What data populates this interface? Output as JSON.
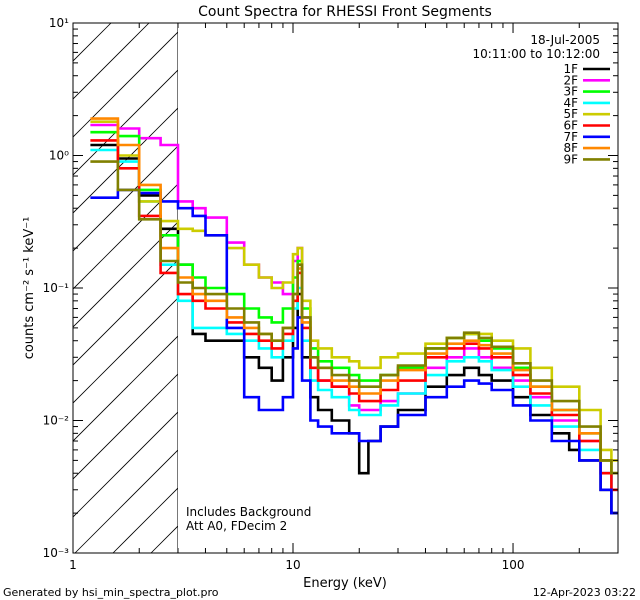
{
  "chart_data": {
    "type": "line",
    "title": "Count Spectra for RHESSI Front Segments",
    "xlabel": "Energy (keV)",
    "ylabel": "counts cm⁻² s⁻¹ keV⁻¹",
    "xscale": "log",
    "yscale": "log",
    "xlim": [
      1,
      300
    ],
    "ylim": [
      0.001,
      10
    ],
    "x_ticks": [
      {
        "value": 1,
        "label": "1"
      },
      {
        "value": 10,
        "label": "10"
      },
      {
        "value": 100,
        "label": "100"
      }
    ],
    "y_ticks": [
      {
        "value": 0.001,
        "label": "10⁻³"
      },
      {
        "value": 0.01,
        "label": "10⁻²"
      },
      {
        "value": 0.1,
        "label": "10⁻¹"
      },
      {
        "value": 1,
        "label": "10⁰"
      },
      {
        "value": 10,
        "label": "10¹"
      }
    ],
    "legend_position": "top-right",
    "header_lines": [
      "18-Jul-2005",
      "10:11:00 to 10:12:00"
    ],
    "hatched_region": {
      "x_from": 1,
      "x_to": 3
    },
    "annotations": [
      "Includes Background",
      "Att A0, FDecim 2"
    ],
    "series": [
      {
        "name": "1F",
        "color": "#000000",
        "points": [
          [
            1.2,
            1.2
          ],
          [
            1.6,
            0.95
          ],
          [
            2.0,
            0.5
          ],
          [
            2.5,
            0.28
          ],
          [
            3.0,
            0.15
          ],
          [
            3.5,
            0.045
          ],
          [
            4,
            0.04
          ],
          [
            5,
            0.04
          ],
          [
            6,
            0.03
          ],
          [
            7,
            0.025
          ],
          [
            8,
            0.02
          ],
          [
            9,
            0.03
          ],
          [
            10,
            0.05
          ],
          [
            10.5,
            0.09
          ],
          [
            11,
            0.03
          ],
          [
            12,
            0.015
          ],
          [
            13,
            0.012
          ],
          [
            15,
            0.01
          ],
          [
            18,
            0.008
          ],
          [
            20,
            0.004
          ],
          [
            22,
            0.007
          ],
          [
            25,
            0.009
          ],
          [
            30,
            0.012
          ],
          [
            40,
            0.018
          ],
          [
            50,
            0.022
          ],
          [
            60,
            0.025
          ],
          [
            70,
            0.022
          ],
          [
            80,
            0.02
          ],
          [
            100,
            0.015
          ],
          [
            120,
            0.011
          ],
          [
            150,
            0.008
          ],
          [
            180,
            0.006
          ],
          [
            200,
            0.005
          ],
          [
            250,
            0.003
          ],
          [
            280,
            0.002
          ]
        ]
      },
      {
        "name": "2F",
        "color": "#ff00ff",
        "points": [
          [
            1.2,
            1.7
          ],
          [
            1.6,
            1.6
          ],
          [
            2.0,
            1.35
          ],
          [
            2.5,
            1.2
          ],
          [
            3.0,
            0.45
          ],
          [
            3.5,
            0.4
          ],
          [
            4,
            0.34
          ],
          [
            5,
            0.22
          ],
          [
            6,
            0.15
          ],
          [
            7,
            0.12
          ],
          [
            8,
            0.11
          ],
          [
            9,
            0.09
          ],
          [
            10,
            0.16
          ],
          [
            10.5,
            0.2
          ],
          [
            11,
            0.06
          ],
          [
            12,
            0.025
          ],
          [
            13,
            0.02
          ],
          [
            15,
            0.018
          ],
          [
            18,
            0.013
          ],
          [
            20,
            0.012
          ],
          [
            25,
            0.014
          ],
          [
            30,
            0.016
          ],
          [
            40,
            0.025
          ],
          [
            50,
            0.03
          ],
          [
            60,
            0.035
          ],
          [
            70,
            0.03
          ],
          [
            80,
            0.025
          ],
          [
            100,
            0.02
          ],
          [
            120,
            0.015
          ],
          [
            150,
            0.01
          ],
          [
            200,
            0.007
          ],
          [
            250,
            0.004
          ],
          [
            280,
            0.003
          ]
        ]
      },
      {
        "name": "3F",
        "color": "#00ff00",
        "points": [
          [
            1.2,
            1.5
          ],
          [
            1.6,
            1.4
          ],
          [
            2.0,
            0.55
          ],
          [
            2.5,
            0.25
          ],
          [
            3.0,
            0.15
          ],
          [
            3.5,
            0.12
          ],
          [
            4,
            0.1
          ],
          [
            5,
            0.09
          ],
          [
            6,
            0.07
          ],
          [
            7,
            0.06
          ],
          [
            8,
            0.055
          ],
          [
            9,
            0.07
          ],
          [
            10,
            0.12
          ],
          [
            10.5,
            0.16
          ],
          [
            11,
            0.07
          ],
          [
            12,
            0.035
          ],
          [
            13,
            0.028
          ],
          [
            15,
            0.025
          ],
          [
            18,
            0.022
          ],
          [
            20,
            0.02
          ],
          [
            25,
            0.022
          ],
          [
            30,
            0.025
          ],
          [
            40,
            0.035
          ],
          [
            50,
            0.042
          ],
          [
            60,
            0.045
          ],
          [
            70,
            0.04
          ],
          [
            80,
            0.035
          ],
          [
            100,
            0.025
          ],
          [
            120,
            0.018
          ],
          [
            150,
            0.012
          ],
          [
            200,
            0.008
          ],
          [
            250,
            0.005
          ],
          [
            280,
            0.004
          ]
        ]
      },
      {
        "name": "4F",
        "color": "#00ffff",
        "points": [
          [
            1.2,
            1.1
          ],
          [
            1.6,
            0.9
          ],
          [
            2.0,
            0.45
          ],
          [
            2.5,
            0.15
          ],
          [
            3.0,
            0.08
          ],
          [
            3.5,
            0.05
          ],
          [
            4,
            0.05
          ],
          [
            5,
            0.045
          ],
          [
            6,
            0.04
          ],
          [
            7,
            0.035
          ],
          [
            8,
            0.03
          ],
          [
            9,
            0.04
          ],
          [
            10,
            0.07
          ],
          [
            10.5,
            0.1
          ],
          [
            11,
            0.04
          ],
          [
            12,
            0.02
          ],
          [
            13,
            0.017
          ],
          [
            15,
            0.015
          ],
          [
            18,
            0.012
          ],
          [
            20,
            0.011
          ],
          [
            25,
            0.013
          ],
          [
            30,
            0.016
          ],
          [
            40,
            0.022
          ],
          [
            50,
            0.028
          ],
          [
            60,
            0.03
          ],
          [
            70,
            0.028
          ],
          [
            80,
            0.024
          ],
          [
            100,
            0.018
          ],
          [
            120,
            0.013
          ],
          [
            150,
            0.009
          ],
          [
            200,
            0.006
          ],
          [
            250,
            0.004
          ],
          [
            280,
            0.003
          ]
        ]
      },
      {
        "name": "5F",
        "color": "#cccc00",
        "points": [
          [
            1.2,
            1.8
          ],
          [
            1.6,
            1.0
          ],
          [
            2.0,
            0.45
          ],
          [
            2.5,
            0.32
          ],
          [
            3.0,
            0.28
          ],
          [
            3.5,
            0.27
          ],
          [
            4,
            0.25
          ],
          [
            5,
            0.2
          ],
          [
            6,
            0.15
          ],
          [
            7,
            0.12
          ],
          [
            8,
            0.1
          ],
          [
            9,
            0.11
          ],
          [
            10,
            0.18
          ],
          [
            10.5,
            0.2
          ],
          [
            11,
            0.08
          ],
          [
            12,
            0.04
          ],
          [
            13,
            0.035
          ],
          [
            15,
            0.03
          ],
          [
            18,
            0.028
          ],
          [
            20,
            0.025
          ],
          [
            25,
            0.03
          ],
          [
            30,
            0.032
          ],
          [
            40,
            0.038
          ],
          [
            50,
            0.042
          ],
          [
            60,
            0.045
          ],
          [
            70,
            0.045
          ],
          [
            80,
            0.04
          ],
          [
            100,
            0.035
          ],
          [
            120,
            0.025
          ],
          [
            150,
            0.018
          ],
          [
            200,
            0.012
          ],
          [
            250,
            0.006
          ],
          [
            280,
            0.005
          ]
        ]
      },
      {
        "name": "6F",
        "color": "#ff0000",
        "points": [
          [
            1.2,
            1.3
          ],
          [
            1.6,
            0.8
          ],
          [
            2.0,
            0.35
          ],
          [
            2.5,
            0.13
          ],
          [
            3.0,
            0.09
          ],
          [
            3.5,
            0.08
          ],
          [
            4,
            0.07
          ],
          [
            5,
            0.055
          ],
          [
            6,
            0.045
          ],
          [
            7,
            0.04
          ],
          [
            8,
            0.035
          ],
          [
            9,
            0.045
          ],
          [
            10,
            0.08
          ],
          [
            10.5,
            0.13
          ],
          [
            11,
            0.05
          ],
          [
            12,
            0.025
          ],
          [
            13,
            0.02
          ],
          [
            15,
            0.018
          ],
          [
            18,
            0.016
          ],
          [
            20,
            0.014
          ],
          [
            25,
            0.017
          ],
          [
            30,
            0.02
          ],
          [
            40,
            0.03
          ],
          [
            50,
            0.035
          ],
          [
            60,
            0.038
          ],
          [
            70,
            0.035
          ],
          [
            80,
            0.03
          ],
          [
            100,
            0.022
          ],
          [
            120,
            0.016
          ],
          [
            150,
            0.011
          ],
          [
            200,
            0.007
          ],
          [
            250,
            0.004
          ],
          [
            280,
            0.003
          ]
        ]
      },
      {
        "name": "7F",
        "color": "#0000ff",
        "points": [
          [
            1.2,
            0.48
          ],
          [
            1.6,
            0.55
          ],
          [
            2.0,
            0.52
          ],
          [
            2.5,
            0.45
          ],
          [
            3.0,
            0.4
          ],
          [
            3.5,
            0.35
          ],
          [
            4,
            0.25
          ],
          [
            5,
            0.05
          ],
          [
            6,
            0.015
          ],
          [
            7,
            0.012
          ],
          [
            8,
            0.012
          ],
          [
            9,
            0.015
          ],
          [
            10,
            0.035
          ],
          [
            10.5,
            0.06
          ],
          [
            11,
            0.02
          ],
          [
            12,
            0.01
          ],
          [
            13,
            0.009
          ],
          [
            15,
            0.008
          ],
          [
            18,
            0.008
          ],
          [
            20,
            0.007
          ],
          [
            25,
            0.009
          ],
          [
            30,
            0.011
          ],
          [
            40,
            0.015
          ],
          [
            50,
            0.018
          ],
          [
            60,
            0.02
          ],
          [
            70,
            0.019
          ],
          [
            80,
            0.017
          ],
          [
            100,
            0.013
          ],
          [
            120,
            0.01
          ],
          [
            150,
            0.007
          ],
          [
            200,
            0.005
          ],
          [
            250,
            0.003
          ],
          [
            280,
            0.002
          ]
        ]
      },
      {
        "name": "8F",
        "color": "#ff8800",
        "points": [
          [
            1.2,
            1.9
          ],
          [
            1.6,
            1.2
          ],
          [
            2.0,
            0.6
          ],
          [
            2.5,
            0.2
          ],
          [
            3.0,
            0.12
          ],
          [
            3.5,
            0.09
          ],
          [
            4,
            0.08
          ],
          [
            5,
            0.06
          ],
          [
            6,
            0.05
          ],
          [
            7,
            0.045
          ],
          [
            8,
            0.04
          ],
          [
            9,
            0.05
          ],
          [
            10,
            0.09
          ],
          [
            10.5,
            0.14
          ],
          [
            11,
            0.055
          ],
          [
            12,
            0.03
          ],
          [
            13,
            0.025
          ],
          [
            15,
            0.02
          ],
          [
            18,
            0.018
          ],
          [
            20,
            0.016
          ],
          [
            25,
            0.02
          ],
          [
            30,
            0.024
          ],
          [
            40,
            0.032
          ],
          [
            50,
            0.038
          ],
          [
            60,
            0.04
          ],
          [
            70,
            0.037
          ],
          [
            80,
            0.032
          ],
          [
            100,
            0.024
          ],
          [
            120,
            0.018
          ],
          [
            150,
            0.012
          ],
          [
            200,
            0.008
          ],
          [
            250,
            0.005
          ],
          [
            280,
            0.004
          ]
        ]
      },
      {
        "name": "9F",
        "color": "#808000",
        "points": [
          [
            1.2,
            0.9
          ],
          [
            1.6,
            0.55
          ],
          [
            2.0,
            0.33
          ],
          [
            2.5,
            0.16
          ],
          [
            3.0,
            0.11
          ],
          [
            3.5,
            0.1
          ],
          [
            4,
            0.09
          ],
          [
            5,
            0.07
          ],
          [
            6,
            0.055
          ],
          [
            7,
            0.045
          ],
          [
            8,
            0.04
          ],
          [
            9,
            0.05
          ],
          [
            10,
            0.09
          ],
          [
            10.5,
            0.15
          ],
          [
            11,
            0.06
          ],
          [
            12,
            0.03
          ],
          [
            13,
            0.025
          ],
          [
            15,
            0.022
          ],
          [
            18,
            0.02
          ],
          [
            20,
            0.018
          ],
          [
            25,
            0.022
          ],
          [
            30,
            0.026
          ],
          [
            40,
            0.035
          ],
          [
            50,
            0.042
          ],
          [
            60,
            0.046
          ],
          [
            70,
            0.042
          ],
          [
            80,
            0.036
          ],
          [
            100,
            0.027
          ],
          [
            120,
            0.02
          ],
          [
            150,
            0.014
          ],
          [
            200,
            0.009
          ],
          [
            250,
            0.005
          ],
          [
            280,
            0.004
          ]
        ]
      }
    ]
  },
  "footer": {
    "left": "Generated by hsi_min_spectra_plot.pro",
    "right": "12-Apr-2023 03:22"
  }
}
